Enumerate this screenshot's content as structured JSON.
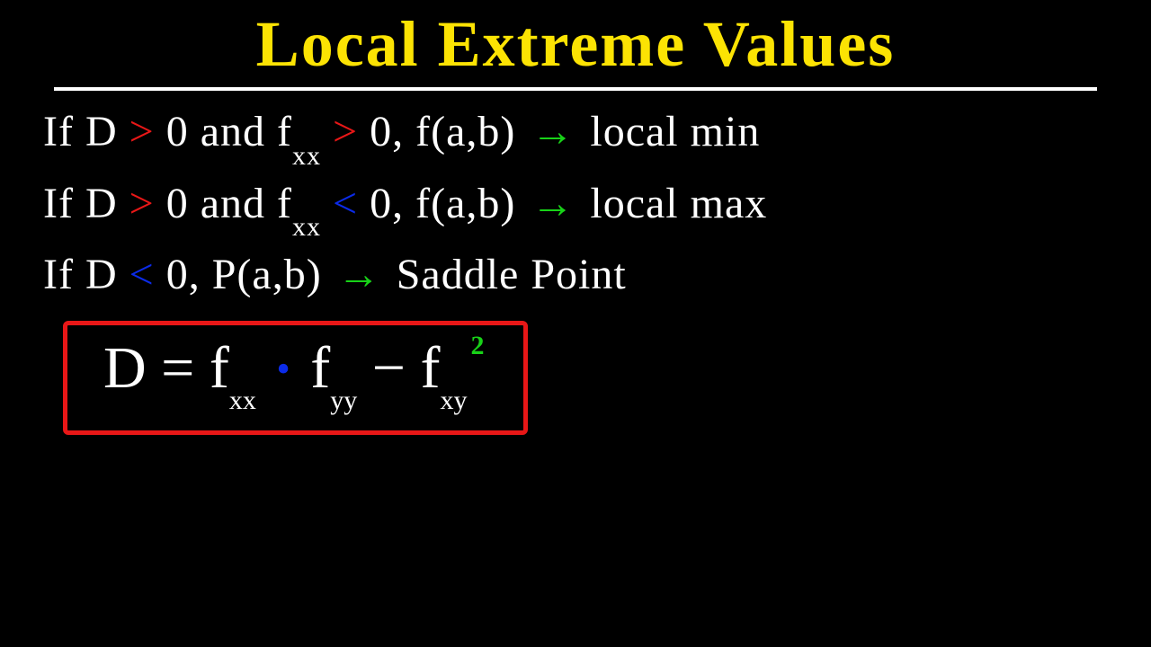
{
  "colors": {
    "background": "#000000",
    "title": "#fce303",
    "text": "#ffffff",
    "red": "#e81717",
    "blue": "#0b2be8",
    "green": "#18d218",
    "box_border": "#e81717"
  },
  "title": "Local Extreme Values",
  "line1": {
    "p1": "If D",
    "gt1": ">",
    "p2": "0 and f",
    "sub1": "xx",
    "gt2": ">",
    "p3": "0,  f(a,b) ",
    "arrow": "→",
    "p4": " local min"
  },
  "line2": {
    "p1": "If D",
    "gt1": ">",
    "p2": "0 and f",
    "sub1": "xx",
    "lt1": "<",
    "p3": "0,  f(a,b) ",
    "arrow": "→",
    "p4": " local max"
  },
  "line3": {
    "p1": "If D",
    "lt1": "<",
    "p2": "0,   P(a,b) ",
    "arrow": "→",
    "p3": " Saddle Point"
  },
  "formula": {
    "p1": "D = f",
    "sub1": "xx",
    "dot": "•",
    "p2": " f",
    "sub2": "yy",
    "p3": "  −  f",
    "sub3": "xy",
    "sup1": "2"
  }
}
